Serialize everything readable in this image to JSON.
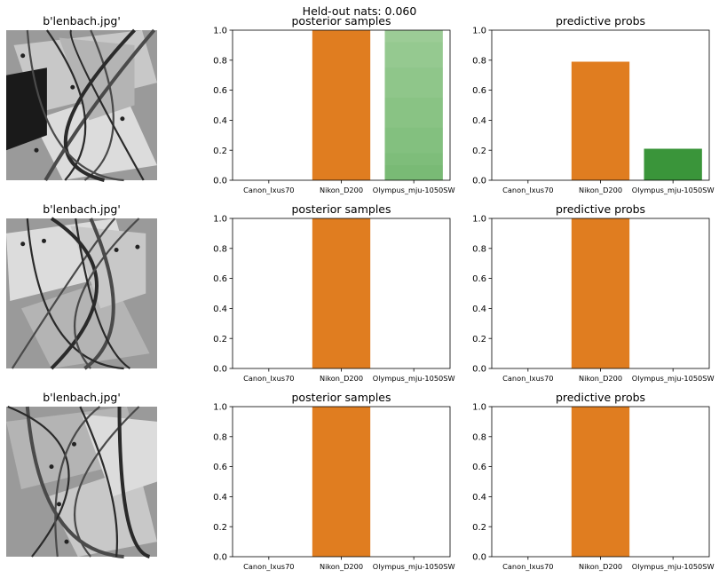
{
  "figure": {
    "suptitle": "Held-out nats: 0.060"
  },
  "colors": {
    "nikon": "#e07d20",
    "olympus_sample": "#9ccc96",
    "olympus_prob": "#3a953a",
    "image_bg": "#9a9a9a"
  },
  "chart_data": [
    {
      "row": 0,
      "image_title": "b'lenbach.jpg'",
      "posterior": {
        "type": "bar",
        "title": "posterior samples",
        "categories": [
          "Canon_Ixus70",
          "Nikon_D200",
          "Olympus_mju-1050SW"
        ],
        "values": [
          0.0,
          1.0,
          1.0
        ],
        "ylim": [
          0,
          1
        ],
        "yticks": [
          "0.0",
          "0.2",
          "0.4",
          "0.6",
          "0.8",
          "1.0"
        ]
      },
      "predictive": {
        "type": "bar",
        "title": "predictive probs",
        "categories": [
          "Canon_Ixus70",
          "Nikon_D200",
          "Olympus_mju-1050SW"
        ],
        "values": [
          0.0,
          0.79,
          0.21
        ],
        "ylim": [
          0,
          1
        ],
        "yticks": [
          "0.0",
          "0.2",
          "0.4",
          "0.6",
          "0.8",
          "1.0"
        ]
      }
    },
    {
      "row": 1,
      "image_title": "b'lenbach.jpg'",
      "posterior": {
        "type": "bar",
        "title": "posterior samples",
        "categories": [
          "Canon_Ixus70",
          "Nikon_D200",
          "Olympus_mju-1050SW"
        ],
        "values": [
          0.0,
          1.0,
          0.0
        ],
        "ylim": [
          0,
          1
        ],
        "yticks": [
          "0.0",
          "0.2",
          "0.4",
          "0.6",
          "0.8",
          "1.0"
        ]
      },
      "predictive": {
        "type": "bar",
        "title": "predictive probs",
        "categories": [
          "Canon_Ixus70",
          "Nikon_D200",
          "Olympus_mju-1050SW"
        ],
        "values": [
          0.0,
          1.0,
          0.0
        ],
        "ylim": [
          0,
          1
        ],
        "yticks": [
          "0.0",
          "0.2",
          "0.4",
          "0.6",
          "0.8",
          "1.0"
        ]
      }
    },
    {
      "row": 2,
      "image_title": "b'lenbach.jpg'",
      "posterior": {
        "type": "bar",
        "title": "posterior samples",
        "categories": [
          "Canon_Ixus70",
          "Nikon_D200",
          "Olympus_mju-1050SW"
        ],
        "values": [
          0.0,
          1.0,
          0.0
        ],
        "ylim": [
          0,
          1
        ],
        "yticks": [
          "0.0",
          "0.2",
          "0.4",
          "0.6",
          "0.8",
          "1.0"
        ]
      },
      "predictive": {
        "type": "bar",
        "title": "predictive probs",
        "categories": [
          "Canon_Ixus70",
          "Nikon_D200",
          "Olympus_mju-1050SW"
        ],
        "values": [
          0.0,
          1.0,
          0.0
        ],
        "ylim": [
          0,
          1
        ],
        "yticks": [
          "0.0",
          "0.2",
          "0.4",
          "0.6",
          "0.8",
          "1.0"
        ]
      }
    }
  ]
}
